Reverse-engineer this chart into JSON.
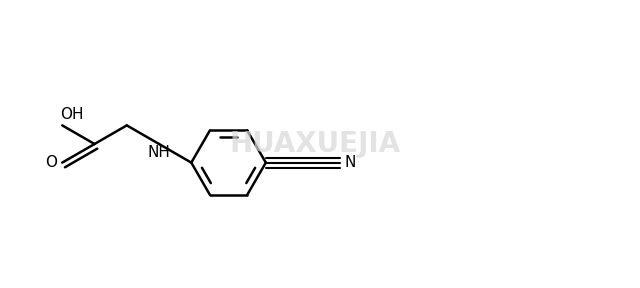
{
  "background_color": "#ffffff",
  "line_color": "#000000",
  "line_width": 1.8,
  "fig_width": 6.4,
  "fig_height": 2.88,
  "labels": {
    "OH": {
      "fontsize": 11
    },
    "O": {
      "fontsize": 11
    },
    "NH": {
      "fontsize": 11
    },
    "N": {
      "fontsize": 11
    }
  }
}
